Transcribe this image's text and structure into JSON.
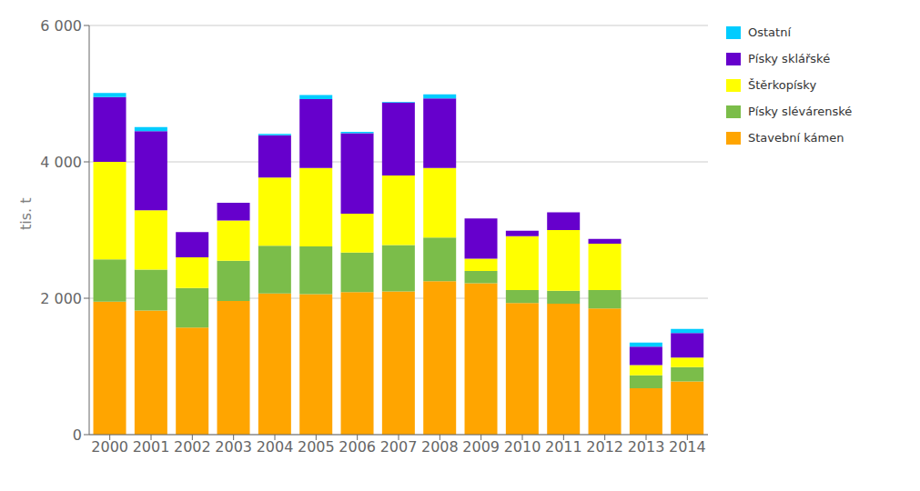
{
  "chart_data": {
    "type": "bar",
    "stacked": true,
    "categories": [
      "2000",
      "2001",
      "2002",
      "2003",
      "2004",
      "2005",
      "2006",
      "2007",
      "2008",
      "2009",
      "2010",
      "2011",
      "2012",
      "2013",
      "2014"
    ],
    "series": [
      {
        "name": "Stavební kámen",
        "color": "#FFA500",
        "values": [
          1950,
          1820,
          1570,
          1960,
          2070,
          2060,
          2090,
          2100,
          2250,
          2220,
          1930,
          1920,
          1850,
          680,
          780
        ]
      },
      {
        "name": "Písky slévárenské",
        "color": "#7BBD4A",
        "values": [
          620,
          600,
          580,
          590,
          700,
          700,
          580,
          680,
          640,
          180,
          190,
          190,
          270,
          190,
          210
        ]
      },
      {
        "name": "Štěrkopísky",
        "color": "#FFFF00",
        "values": [
          1430,
          870,
          450,
          590,
          1000,
          1150,
          570,
          1020,
          1020,
          180,
          790,
          890,
          680,
          150,
          140
        ]
      },
      {
        "name": "Písky sklářské",
        "color": "#6600CC",
        "values": [
          950,
          1160,
          370,
          260,
          620,
          1010,
          1180,
          1070,
          1020,
          590,
          80,
          260,
          70,
          270,
          360
        ]
      },
      {
        "name": "Ostatní",
        "color": "#00CCFF",
        "values": [
          60,
          60,
          0,
          0,
          20,
          60,
          20,
          10,
          60,
          0,
          0,
          0,
          0,
          60,
          60
        ]
      }
    ],
    "ylabel": "tis. t",
    "ylim": [
      0,
      6000
    ],
    "yticks": [
      0,
      {
        "value": 2000,
        "label": "2 000"
      },
      {
        "value": 4000,
        "label": "4 000"
      },
      {
        "value": 6000,
        "label": "6 000"
      }
    ],
    "grid": true,
    "legend": "right"
  }
}
